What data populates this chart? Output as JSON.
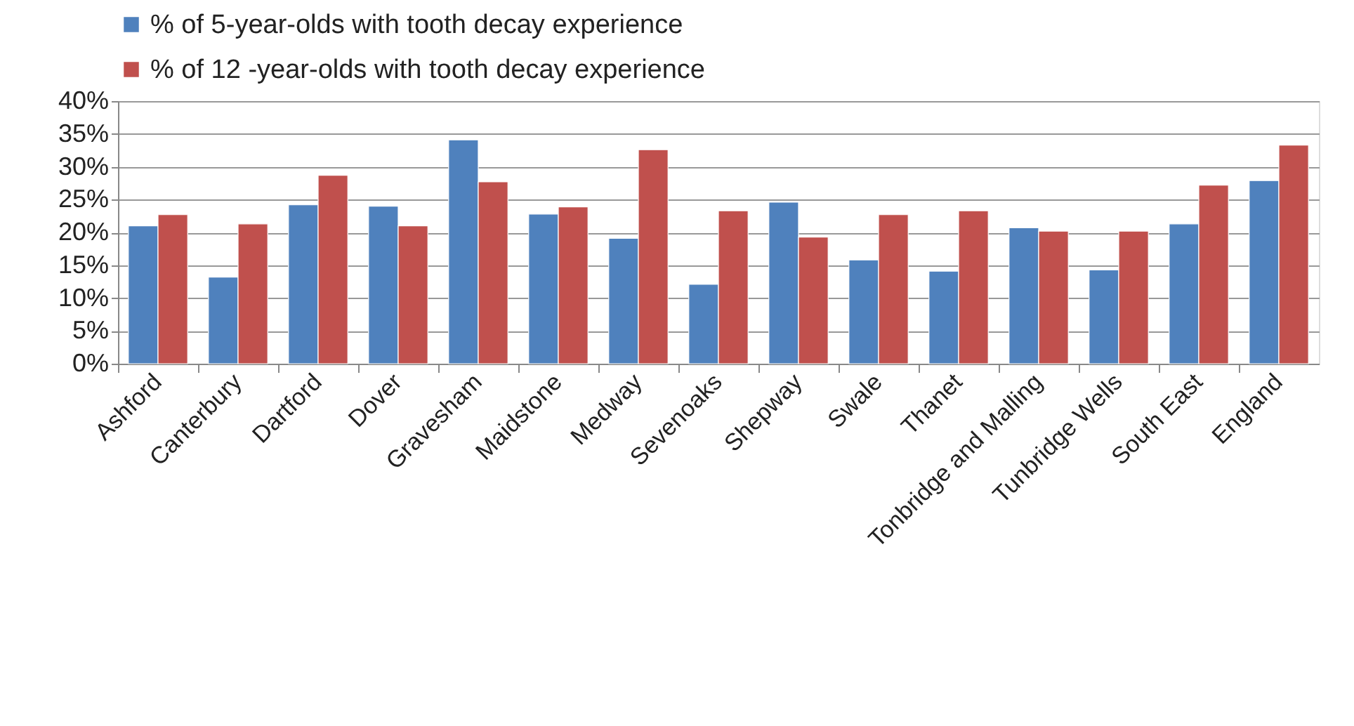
{
  "chart_data": {
    "type": "bar",
    "categories": [
      "Ashford",
      "Canterbury",
      "Dartford",
      "Dover",
      "Gravesham",
      "Maidstone",
      "Medway",
      "Sevenoaks",
      "Shepway",
      "Swale",
      "Thanet",
      "Tonbridge and Malling",
      "Tunbridge Wells",
      "South East",
      "England"
    ],
    "series": [
      {
        "name": "% of 5-year-olds with tooth decay experience",
        "color": "#4f81bd",
        "values": [
          21.0,
          13.2,
          24.2,
          24.0,
          34.1,
          22.8,
          19.1,
          12.1,
          24.6,
          15.8,
          14.1,
          20.7,
          14.3,
          21.3,
          27.9
        ]
      },
      {
        "name": "% of 12 -year-olds with tooth decay experience",
        "color": "#c0504d",
        "values": [
          22.7,
          21.3,
          28.7,
          21.0,
          27.7,
          23.9,
          32.6,
          23.3,
          19.3,
          22.7,
          23.3,
          20.2,
          20.2,
          27.2,
          33.3
        ]
      }
    ],
    "ylim": [
      0,
      40
    ],
    "yticks": [
      {
        "value": 0,
        "label": "0%"
      },
      {
        "value": 5,
        "label": "5%"
      },
      {
        "value": 10,
        "label": "10%"
      },
      {
        "value": 15,
        "label": "15%"
      },
      {
        "value": 20,
        "label": "20%"
      },
      {
        "value": 25,
        "label": "25%"
      },
      {
        "value": 30,
        "label": "30%"
      },
      {
        "value": 35,
        "label": "35%"
      },
      {
        "value": 40,
        "label": "40%"
      }
    ],
    "grid": "y",
    "legend": "top"
  }
}
